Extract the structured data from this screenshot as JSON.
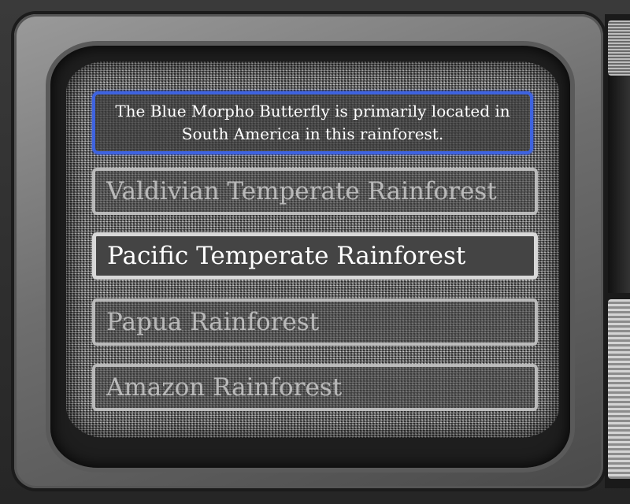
{
  "question": {
    "text": "The Blue Morpho Butterfly is primarily located in South America in this rainforest.",
    "border_color": "#3e63e0"
  },
  "answers": [
    {
      "label": "Valdivian Temperate Rainforest",
      "state": "dim"
    },
    {
      "label": "Pacific Temperate Rainforest",
      "state": "highlighted"
    },
    {
      "label": "Papua Rainforest",
      "state": "dim"
    },
    {
      "label": "Amazon Rainforest",
      "state": "dim"
    }
  ],
  "theme": {
    "screen_effect": "tv-static",
    "highlight_fill": "#444444",
    "option_border": "#d8d8d8"
  }
}
